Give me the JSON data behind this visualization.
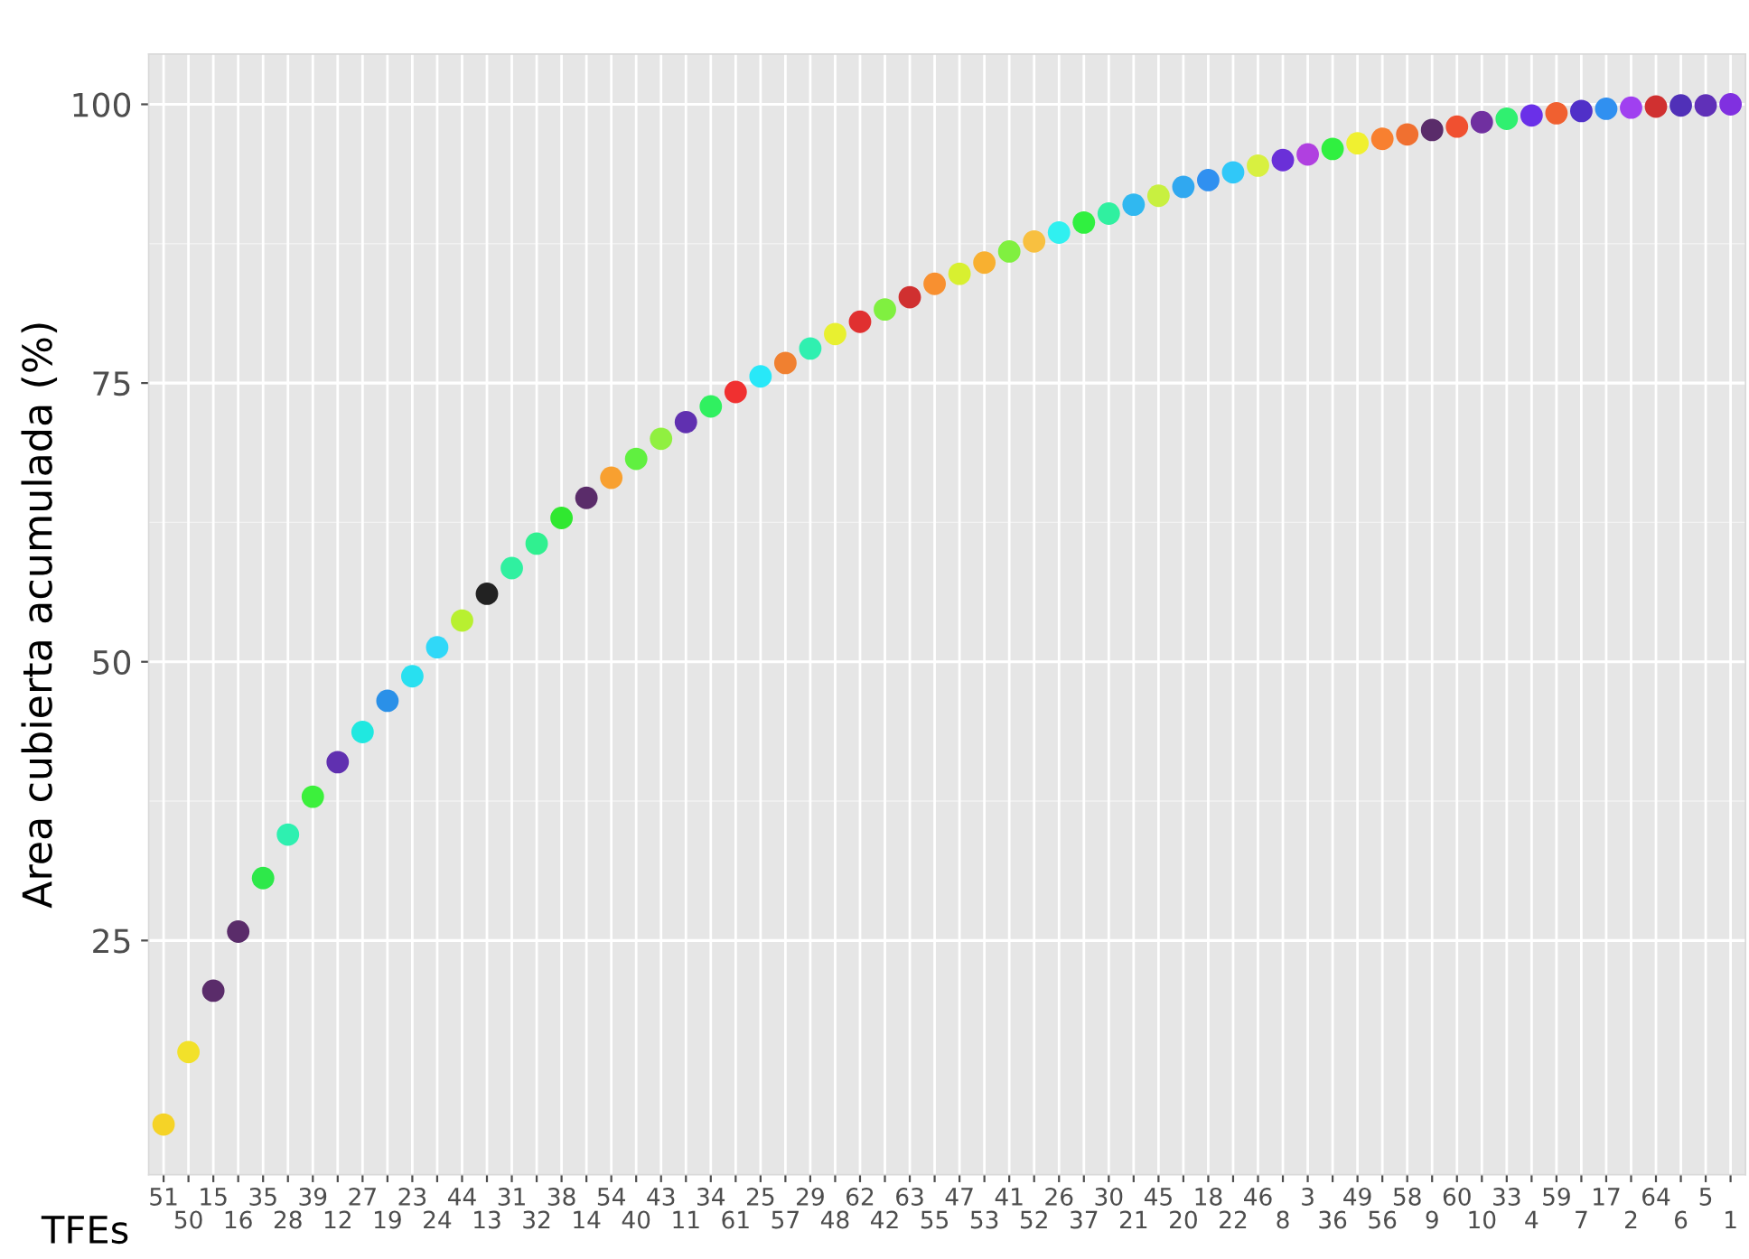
{
  "chart_data": {
    "type": "scatter",
    "xlabel": "TFEs",
    "ylabel": "Area cubierta acumulada (%)",
    "categories": [
      "51",
      "50",
      "15",
      "16",
      "35",
      "28",
      "39",
      "12",
      "27",
      "19",
      "23",
      "24",
      "44",
      "13",
      "31",
      "32",
      "38",
      "14",
      "54",
      "40",
      "43",
      "11",
      "34",
      "61",
      "25",
      "57",
      "29",
      "48",
      "62",
      "42",
      "63",
      "55",
      "47",
      "53",
      "41",
      "52",
      "26",
      "37",
      "30",
      "21",
      "45",
      "20",
      "18",
      "22",
      "46",
      "8",
      "3",
      "36",
      "49",
      "56",
      "58",
      "9",
      "60",
      "10",
      "33",
      "4",
      "59",
      "7",
      "17",
      "2",
      "64",
      "6",
      "5",
      "1"
    ],
    "values": [
      8.5,
      15.0,
      20.5,
      25.8,
      30.6,
      34.5,
      37.9,
      41.0,
      43.7,
      46.5,
      48.7,
      51.3,
      53.7,
      56.1,
      58.4,
      60.6,
      62.9,
      64.7,
      66.5,
      68.2,
      70.0,
      71.5,
      72.9,
      74.2,
      75.6,
      76.8,
      78.1,
      79.4,
      80.5,
      81.6,
      82.7,
      83.9,
      84.8,
      85.8,
      86.8,
      87.7,
      88.5,
      89.4,
      90.2,
      91.0,
      91.8,
      92.6,
      93.2,
      93.9,
      94.5,
      95.0,
      95.5,
      96.0,
      96.5,
      96.9,
      97.3,
      97.7,
      98.0,
      98.4,
      98.7,
      99.0,
      99.2,
      99.4,
      99.6,
      99.7,
      99.8,
      99.9,
      99.9,
      100
    ],
    "colors": [
      "#f5d327",
      "#f2e12a",
      "#5a2c6a",
      "#5a2c6a",
      "#2ee84a",
      "#2ef0b0",
      "#3cf03c",
      "#6030b0",
      "#20e8e0",
      "#2a90e8",
      "#28e0f0",
      "#30d8f8",
      "#b8f030",
      "#222222",
      "#30f0a0",
      "#30f090",
      "#30e830",
      "#5a2c6a",
      "#f8a030",
      "#60f040",
      "#90f040",
      "#6030b0",
      "#30f060",
      "#f03030",
      "#28e8f8",
      "#f08030",
      "#30f0b0",
      "#e8f030",
      "#e03030",
      "#80f040",
      "#d03030",
      "#f89030",
      "#d8f030",
      "#f8b030",
      "#80f040",
      "#f8c040",
      "#30f0f0",
      "#30f040",
      "#30f0a0",
      "#30b8f0",
      "#c8f040",
      "#30a8f0",
      "#3090f0",
      "#30c8f8",
      "#d8f040",
      "#6a30d8",
      "#b040e0",
      "#30f040",
      "#f0f030",
      "#f88030",
      "#f07030",
      "#5a2c6a",
      "#f05030",
      "#7030a0",
      "#30f070",
      "#6a30e8",
      "#f06030",
      "#5030c8",
      "#3090f0",
      "#a040f0",
      "#d03030",
      "#5030b8",
      "#6030b8",
      "#8030e0"
    ],
    "ylim": [
      4,
      104.5
    ],
    "yticks": [
      25,
      50,
      75,
      100
    ],
    "grid": true,
    "marker": "circle",
    "legend": false
  }
}
